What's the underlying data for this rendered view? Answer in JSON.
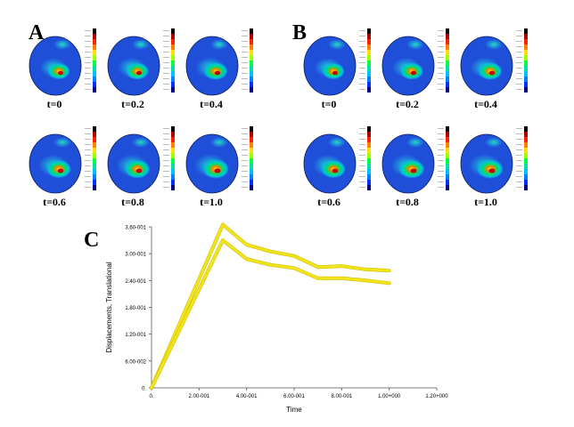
{
  "figure": {
    "panels": [
      {
        "letter": "A",
        "labels": [
          "t=0",
          "t=0.2",
          "t=0.4",
          "t=0.6",
          "t=0.8",
          "t=1.0"
        ]
      },
      {
        "letter": "B",
        "labels": [
          "t=0",
          "t=0.2",
          "t=0.4",
          "t=0.6",
          "t=0.8",
          "t=1.0"
        ]
      }
    ],
    "chart_panel_letter": "C"
  },
  "colors": {
    "colorbar": [
      "#000000",
      "#b00000",
      "#ff2000",
      "#ff8000",
      "#ffe000",
      "#a0ff00",
      "#00ff40",
      "#00e0a0",
      "#00c0ff",
      "#0080ff",
      "#0030ff",
      "#000080"
    ],
    "head_base": "#1f4fd8",
    "series": "#f2e41a"
  },
  "chart_data": {
    "type": "line",
    "title": "",
    "xlabel": "Time",
    "ylabel": "Displacements, Translational",
    "xlim": [
      0,
      1.2
    ],
    "ylim": [
      0,
      0.36
    ],
    "xticks": [
      0,
      0.2,
      0.4,
      0.6,
      0.8,
      1.0,
      1.2
    ],
    "xtick_labels": [
      "0.",
      "2.00-001",
      "4.00-001",
      "6.00-001",
      "8.00-001",
      "1.00+000",
      "1.20+000"
    ],
    "yticks": [
      0,
      0.06,
      0.12,
      0.18,
      0.24,
      0.3,
      0.36
    ],
    "ytick_labels": [
      "0.",
      "6.00-002",
      "1.20-001",
      "1.80-001",
      "2.40-001",
      "3.00-001",
      "3.60-001"
    ],
    "series": [
      {
        "name": "upper",
        "x": [
          0,
          0.3,
          0.4,
          0.5,
          0.6,
          0.7,
          0.8,
          0.9,
          1.0
        ],
        "y": [
          0,
          0.365,
          0.32,
          0.305,
          0.295,
          0.27,
          0.272,
          0.265,
          0.262
        ]
      },
      {
        "name": "lower",
        "x": [
          0,
          0.3,
          0.4,
          0.5,
          0.6,
          0.7,
          0.8,
          0.9,
          1.0
        ],
        "y": [
          0,
          0.33,
          0.288,
          0.275,
          0.268,
          0.245,
          0.245,
          0.24,
          0.234
        ]
      }
    ]
  }
}
